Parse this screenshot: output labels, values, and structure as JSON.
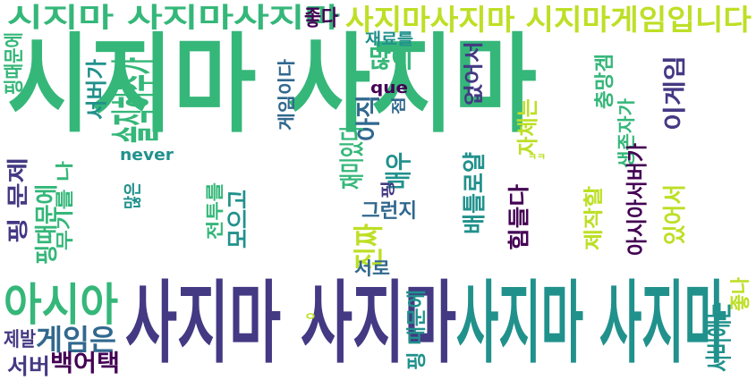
{
  "palette": {
    "background": "#ffffff",
    "viridis": [
      "#440154",
      "#443983",
      "#31688e",
      "#21918c",
      "#35b779",
      "#90d743",
      "#fde725"
    ]
  },
  "words": [
    {
      "text": "사지마 사지마",
      "color": "#443983"
    },
    {
      "text": "사지마 사지마",
      "color": "#21918c"
    },
    {
      "text": "시지마 사지마",
      "color": "#35b779"
    },
    {
      "text": "시지마 사지마사지마",
      "color": "#35b779"
    },
    {
      "text": "사지마사지마 시지마게임입니다",
      "color": "#bddf26"
    },
    {
      "text": "아시아",
      "color": "#35b779"
    },
    {
      "text": "게임은",
      "color": "#31688e"
    },
    {
      "text": "백어택",
      "color": "#440154"
    },
    {
      "text": "서버",
      "color": "#443983"
    },
    {
      "text": "제발",
      "color": "#443983"
    },
    {
      "text": "진짜",
      "color": "#bddf26"
    },
    {
      "text": "매우",
      "color": "#21918c"
    },
    {
      "text": "많이",
      "color": "#35b779"
    },
    {
      "text": "재료를",
      "color": "#21918c"
    },
    {
      "text": "que",
      "color": "#440154"
    },
    {
      "text": "그런지",
      "color": "#31688e"
    },
    {
      "text": "서로",
      "color": "#31688e"
    },
    {
      "text": "never",
      "color": "#21918c"
    },
    {
      "text": "좋다",
      "color": "#440154"
    },
    {
      "text": "아직",
      "color": "#31688e"
    },
    {
      "text": "점",
      "color": "#31688e"
    },
    {
      "text": "핑",
      "color": "#443983"
    },
    {
      "text": "많은",
      "color": "#21918c"
    },
    {
      "text": "ㅇ",
      "color": "#bddf26"
    },
    {
      "text": "ㅋㅋ",
      "color": "#bddf26"
    },
    {
      "text": "핑때문에",
      "color": "#35b779"
    },
    {
      "text": "서버가",
      "color": "#21918c"
    },
    {
      "text": "솔직히추가",
      "color": "#35b779"
    },
    {
      "text": "핑 문제",
      "color": "#443983"
    },
    {
      "text": "무기를 나",
      "color": "#35b779"
    },
    {
      "text": "게임이다",
      "color": "#31688e"
    },
    {
      "text": "재미있다",
      "color": "#35b779"
    },
    {
      "text": "핑때문에",
      "color": "#35b779"
    },
    {
      "text": "핑 때문에",
      "color": "#21918c"
    },
    {
      "text": "모으고",
      "color": "#21918c"
    },
    {
      "text": "전투를",
      "color": "#35b779"
    },
    {
      "text": "없어서",
      "color": "#443983"
    },
    {
      "text": "배틀로얄",
      "color": "#21918c"
    },
    {
      "text": "자체는",
      "color": "#bddf26"
    },
    {
      "text": "힘들다",
      "color": "#440154"
    },
    {
      "text": "이게임",
      "color": "#443983"
    },
    {
      "text": "충망겜",
      "color": "#35b779"
    },
    {
      "text": "생존자가",
      "color": "#35b779"
    },
    {
      "text": "아시아서버가",
      "color": "#440154"
    },
    {
      "text": "제작할",
      "color": "#bddf26"
    },
    {
      "text": "있어서",
      "color": "#bddf26"
    },
    {
      "text": "좋나",
      "color": "#bddf26"
    },
    {
      "text": "서버에는",
      "color": "#21918c"
    }
  ]
}
